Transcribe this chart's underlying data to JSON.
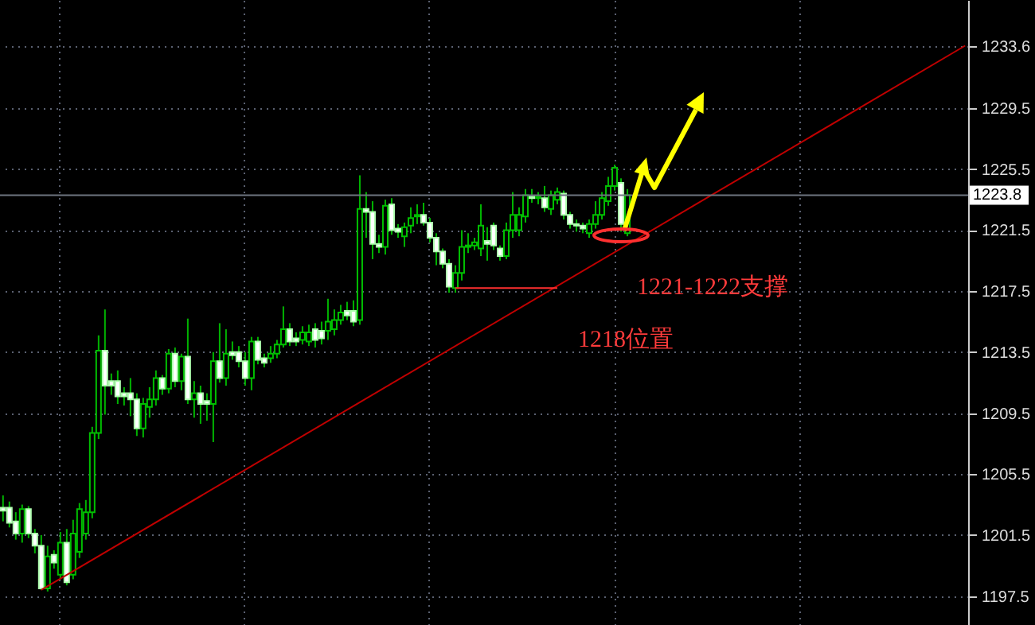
{
  "chart_data": {
    "type": "candlestick",
    "categories": [
      null,
      null,
      null,
      null,
      null,
      null,
      null,
      null,
      null,
      null,
      null,
      null,
      null,
      null,
      null,
      null,
      null,
      null,
      null,
      null,
      null,
      null,
      null,
      null,
      null,
      null,
      null,
      null,
      null,
      null,
      null,
      null,
      null,
      null,
      null,
      null,
      null,
      null,
      null,
      null,
      null,
      null,
      null,
      null,
      null,
      null,
      null,
      null,
      null,
      null,
      null,
      null,
      null,
      null,
      null,
      null,
      null,
      null,
      null,
      null,
      null,
      null,
      null,
      null,
      null,
      null,
      null,
      null,
      null,
      null,
      null,
      null,
      null,
      null,
      null,
      null,
      null,
      null,
      null,
      null,
      null,
      null,
      null,
      null,
      null,
      null,
      null,
      null,
      null,
      null,
      null,
      null,
      null,
      null,
      null,
      null,
      null,
      null,
      null,
      null,
      null,
      null,
      null,
      null,
      null,
      null,
      null,
      null,
      null,
      null,
      null,
      null,
      null,
      null,
      null,
      null,
      null,
      null,
      null,
      null,
      null,
      null,
      null,
      null,
      null,
      null,
      null,
      null,
      null,
      null,
      null,
      null,
      null,
      null,
      null,
      null,
      null,
      null,
      null,
      null,
      null,
      null,
      null,
      null,
      null,
      null,
      null,
      null,
      null,
      null,
      null,
      null
    ],
    "ohlc": [
      [
        1203.3,
        1204.1,
        1202.4,
        1203.1
      ],
      [
        1203.3,
        1203.7,
        1202.0,
        1202.3
      ],
      [
        1202.4,
        1203.0,
        1201.2,
        1201.6
      ],
      [
        1201.6,
        1203.5,
        1201.0,
        1203.2
      ],
      [
        1203.2,
        1203.4,
        1201.3,
        1201.6
      ],
      [
        1201.6,
        1201.9,
        1200.3,
        1200.8
      ],
      [
        1200.8,
        1201.5,
        1197.9,
        1198.0
      ],
      [
        1198.0,
        1200.8,
        1197.8,
        1200.1
      ],
      [
        1200.2,
        1200.5,
        1199.3,
        1199.7
      ],
      [
        1198.9,
        1201.7,
        1198.6,
        1201.0
      ],
      [
        1201.0,
        1201.9,
        1198.2,
        1198.4
      ],
      [
        1198.9,
        1202.5,
        1198.6,
        1201.6
      ],
      [
        1200.4,
        1203.6,
        1200.0,
        1203.2
      ],
      [
        1201.6,
        1203.8,
        1201.2,
        1203.0
      ],
      [
        1203.0,
        1208.6,
        1202.6,
        1208.2
      ],
      [
        1208.2,
        1214.6,
        1207.8,
        1213.6
      ],
      [
        1213.6,
        1216.3,
        1209.4,
        1211.3
      ],
      [
        1211.6,
        1212.1,
        1210.7,
        1211.3
      ],
      [
        1211.6,
        1212.3,
        1210.1,
        1210.6
      ],
      [
        1210.8,
        1211.2,
        1210.0,
        1210.6
      ],
      [
        1210.8,
        1211.8,
        1209.3,
        1210.4
      ],
      [
        1210.4,
        1210.8,
        1208.0,
        1208.5
      ],
      [
        1208.5,
        1210.5,
        1207.9,
        1210.1
      ],
      [
        1209.9,
        1211.2,
        1209.2,
        1210.4
      ],
      [
        1210.4,
        1212.3,
        1210.0,
        1211.8
      ],
      [
        1211.8,
        1212.0,
        1210.7,
        1211.1
      ],
      [
        1211.1,
        1213.7,
        1210.8,
        1213.4
      ],
      [
        1213.4,
        1213.8,
        1211.2,
        1211.6
      ],
      [
        1211.6,
        1213.4,
        1211.0,
        1213.2
      ],
      [
        1213.2,
        1215.7,
        1210.1,
        1210.4
      ],
      [
        1210.4,
        1211.6,
        1209.2,
        1210.8
      ],
      [
        1210.8,
        1211.3,
        1208.8,
        1210.1
      ],
      [
        1210.3,
        1210.8,
        1209.0,
        1210.1
      ],
      [
        1210.1,
        1213.5,
        1207.6,
        1212.9
      ],
      [
        1212.9,
        1215.4,
        1211.5,
        1211.8
      ],
      [
        1211.8,
        1215.0,
        1211.3,
        1213.4
      ],
      [
        1213.5,
        1214.2,
        1213.0,
        1213.3
      ],
      [
        1213.5,
        1213.9,
        1212.5,
        1212.9
      ],
      [
        1212.9,
        1213.5,
        1211.3,
        1211.8
      ],
      [
        1211.8,
        1214.5,
        1211.0,
        1214.2
      ],
      [
        1214.2,
        1214.5,
        1212.7,
        1213.0
      ],
      [
        1213.1,
        1213.4,
        1212.5,
        1212.8
      ],
      [
        1213.1,
        1213.9,
        1212.8,
        1213.4
      ],
      [
        1213.4,
        1214.3,
        1213.1,
        1214.0
      ],
      [
        1214.0,
        1216.5,
        1213.8,
        1215.0
      ],
      [
        1215.0,
        1215.4,
        1213.9,
        1214.2
      ],
      [
        1214.4,
        1214.8,
        1213.9,
        1214.2
      ],
      [
        1214.3,
        1215.2,
        1214.0,
        1214.8
      ],
      [
        1214.2,
        1215.3,
        1213.9,
        1214.8
      ],
      [
        1215.0,
        1215.4,
        1213.8,
        1214.3
      ],
      [
        1214.9,
        1215.5,
        1214.0,
        1214.4
      ],
      [
        1214.9,
        1217.0,
        1214.3,
        1215.5
      ],
      [
        1215.0,
        1216.3,
        1214.6,
        1215.6
      ],
      [
        1215.6,
        1216.6,
        1215.3,
        1216.1
      ],
      [
        1216.2,
        1216.8,
        1215.6,
        1215.9
      ],
      [
        1216.2,
        1216.9,
        1215.2,
        1215.5
      ],
      [
        1215.6,
        1225.1,
        1215.3,
        1222.9
      ],
      [
        1222.9,
        1224.0,
        1221.0,
        1222.7
      ],
      [
        1222.7,
        1223.4,
        1219.6,
        1220.6
      ],
      [
        1220.6,
        1221.2,
        1220.0,
        1220.4
      ],
      [
        1220.4,
        1223.5,
        1219.9,
        1223.1
      ],
      [
        1223.2,
        1223.6,
        1221.2,
        1221.5
      ],
      [
        1221.6,
        1221.9,
        1221.0,
        1221.4
      ],
      [
        1221.1,
        1222.0,
        1220.4,
        1221.7
      ],
      [
        1221.8,
        1223.0,
        1221.3,
        1222.3
      ],
      [
        1222.4,
        1223.2,
        1221.9,
        1222.5
      ],
      [
        1222.5,
        1223.3,
        1221.8,
        1222.0
      ],
      [
        1222.0,
        1222.3,
        1220.7,
        1221.0
      ],
      [
        1221.0,
        1221.3,
        1219.2,
        1220.1
      ],
      [
        1220.1,
        1220.3,
        1219.0,
        1219.3
      ],
      [
        1219.3,
        1219.6,
        1217.4,
        1217.8
      ],
      [
        1217.7,
        1219.2,
        1217.4,
        1218.7
      ],
      [
        1218.7,
        1221.5,
        1218.2,
        1220.4
      ],
      [
        1220.4,
        1221.3,
        1220.0,
        1220.5
      ],
      [
        1220.5,
        1221.0,
        1220.2,
        1220.7
      ],
      [
        1220.3,
        1223.2,
        1219.8,
        1221.8
      ],
      [
        1220.8,
        1221.7,
        1219.5,
        1220.6
      ],
      [
        1221.8,
        1222.0,
        1220.2,
        1220.5
      ],
      [
        1220.3,
        1220.5,
        1219.5,
        1219.8
      ],
      [
        1219.8,
        1222.0,
        1219.6,
        1221.5
      ],
      [
        1221.5,
        1224.0,
        1221.0,
        1222.5
      ],
      [
        1221.5,
        1223.0,
        1221.1,
        1222.5
      ],
      [
        1222.4,
        1224.2,
        1222.0,
        1223.8
      ],
      [
        1223.7,
        1224.2,
        1223.3,
        1223.6
      ],
      [
        1223.6,
        1224.0,
        1223.2,
        1223.7
      ],
      [
        1223.6,
        1224.4,
        1222.7,
        1223.0
      ],
      [
        1222.9,
        1224.1,
        1222.5,
        1223.8
      ],
      [
        1223.5,
        1224.3,
        1223.2,
        1224.0
      ],
      [
        1223.9,
        1224.1,
        1222.2,
        1222.5
      ],
      [
        1222.5,
        1222.7,
        1221.6,
        1221.9
      ],
      [
        1221.9,
        1222.2,
        1221.4,
        1221.8
      ],
      [
        1221.8,
        1222.0,
        1221.3,
        1221.6
      ],
      [
        1221.3,
        1222.2,
        1221.0,
        1221.9
      ],
      [
        1221.9,
        1223.4,
        1221.6,
        1222.5
      ],
      [
        1222.5,
        1224.0,
        1222.2,
        1223.6
      ],
      [
        1223.4,
        1225.0,
        1223.1,
        1224.4
      ],
      [
        1224.4,
        1225.8,
        1224.1,
        1225.6
      ],
      [
        1224.6,
        1224.9,
        1221.4,
        1221.9
      ],
      [
        1221.3,
        1224.2,
        1221.1,
        1223.8
      ],
      null,
      null,
      null,
      null,
      null,
      null,
      null,
      null,
      null,
      null,
      null,
      null,
      null,
      null,
      null,
      null,
      null,
      null,
      null,
      null,
      null,
      null,
      null,
      null,
      null,
      null,
      null,
      null,
      null,
      null,
      null,
      null,
      null,
      null,
      null,
      null,
      null,
      null,
      null,
      null,
      null,
      null,
      null,
      null,
      null,
      null,
      null,
      null,
      null,
      null,
      null,
      null,
      null
    ],
    "series": [
      {
        "type": "line",
        "color": "#c00000",
        "values": [
          null,
          null,
          null,
          null,
          null,
          null,
          1197.9,
          null,
          null,
          null,
          null,
          null,
          null,
          null,
          null,
          null,
          null,
          null,
          null,
          null,
          null,
          null,
          null,
          null,
          null,
          null,
          null,
          null,
          null,
          null,
          null,
          null,
          null,
          null,
          null,
          null,
          null,
          null,
          null,
          null,
          null,
          null,
          null,
          null,
          null,
          null,
          null,
          null,
          null,
          null,
          null,
          null,
          null,
          null,
          null,
          null,
          null,
          null,
          null,
          null,
          null,
          null,
          null,
          null,
          null,
          null,
          null,
          null,
          null,
          null,
          null,
          null,
          null,
          null,
          null,
          null,
          null,
          null,
          null,
          null,
          null,
          null,
          null,
          null,
          null,
          null,
          null,
          null,
          null,
          null,
          null,
          null,
          null,
          null,
          null,
          null,
          null,
          null,
          null,
          null,
          null,
          null,
          null,
          null,
          null,
          null,
          null,
          null,
          null,
          null,
          null,
          null,
          null,
          null,
          null,
          null,
          null,
          null,
          null,
          null,
          null,
          null,
          null,
          null,
          null,
          null,
          null,
          null,
          null,
          null,
          null,
          null,
          null,
          null,
          null,
          null,
          null,
          null,
          null,
          null,
          null,
          null,
          null,
          null,
          null,
          null,
          null,
          null,
          null,
          null,
          null,
          1233.6
        ]
      },
      {
        "type": "line",
        "color": "#ff3030",
        "values": [
          null,
          null,
          null,
          null,
          null,
          null,
          null,
          null,
          null,
          null,
          null,
          null,
          null,
          null,
          null,
          null,
          null,
          null,
          null,
          null,
          null,
          null,
          null,
          null,
          null,
          null,
          null,
          null,
          null,
          null,
          null,
          null,
          null,
          null,
          null,
          null,
          null,
          null,
          null,
          null,
          null,
          null,
          null,
          null,
          null,
          null,
          null,
          null,
          null,
          null,
          null,
          null,
          null,
          null,
          null,
          null,
          null,
          null,
          null,
          null,
          null,
          null,
          null,
          null,
          null,
          null,
          null,
          null,
          null,
          null,
          null,
          1217.7,
          null,
          null,
          null,
          null,
          null,
          null,
          null,
          null,
          null,
          null,
          null,
          null,
          null,
          null,
          null,
          1217.7,
          null,
          null,
          null,
          null,
          null,
          null,
          null,
          null,
          null,
          null,
          null,
          null,
          null,
          null,
          null,
          null,
          null,
          null,
          null,
          null,
          null,
          null,
          null,
          null,
          null,
          null,
          null,
          null,
          null,
          null,
          null,
          null,
          null,
          null,
          null,
          null,
          null,
          null,
          null,
          null,
          null,
          null,
          null,
          null,
          null,
          null,
          null,
          null,
          null,
          null,
          null,
          null,
          null,
          null,
          null,
          null,
          null,
          null,
          null,
          null,
          null,
          null,
          null,
          null
        ]
      }
    ],
    "ylim": [
      1195.6,
      1236.6
    ],
    "yticks": [
      1197.5,
      1201.5,
      1205.5,
      1209.5,
      1213.5,
      1217.5,
      1221.5,
      1225.5,
      1229.5,
      1233.6
    ],
    "ref_lines": [
      {
        "axis": "y",
        "value": 1223.8,
        "label": "1223.8",
        "color": "#6e7480"
      }
    ],
    "annotations": [
      "1221-1222支撑",
      "1218位置"
    ],
    "grid": true,
    "tick_labels": "y"
  }
}
